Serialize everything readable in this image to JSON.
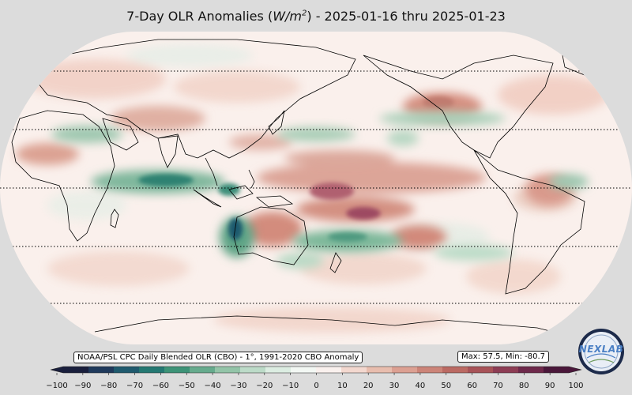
{
  "title": {
    "prefix": "7-Day OLR Anomalies (",
    "unit_base": "W/m",
    "unit_exp": "2",
    "suffix": ") - 2025-01-16 thru 2025-01-23"
  },
  "source_label": "NOAA/PSL CPC Daily Blended OLR (CBO) - 1°, 1991-2020 CBO Anomaly",
  "stats_label": "Max: 57.5,  Min: -80.7",
  "logo": {
    "text": "NEXLAB",
    "icon": "nexlab-globe-logo"
  },
  "colorbar": {
    "ticks": [
      "−100",
      "−90",
      "−80",
      "−70",
      "−60",
      "−50",
      "−40",
      "−30",
      "−20",
      "−10",
      "0",
      "10",
      "20",
      "30",
      "40",
      "50",
      "60",
      "70",
      "80",
      "90",
      "100"
    ],
    "colors": [
      "#1a1f3d",
      "#1f3a5c",
      "#1f5a6e",
      "#247872",
      "#3d9377",
      "#66ab8d",
      "#93c4a8",
      "#bcdbc8",
      "#dcede2",
      "#f3f8f4",
      "#faf1ee",
      "#f3d8cf",
      "#e8bdae",
      "#dca092",
      "#cc8478",
      "#bb6a63",
      "#a85358",
      "#8d3d54",
      "#6e294b",
      "#4a173a"
    ],
    "vmin": -100,
    "vmax": 100
  },
  "map": {
    "projection": "Robinson, centered 180°",
    "anomaly_colors": {
      "negative": "#3f9a7a",
      "positive": "#c7786d",
      "neutral": "#faf0ec"
    }
  }
}
